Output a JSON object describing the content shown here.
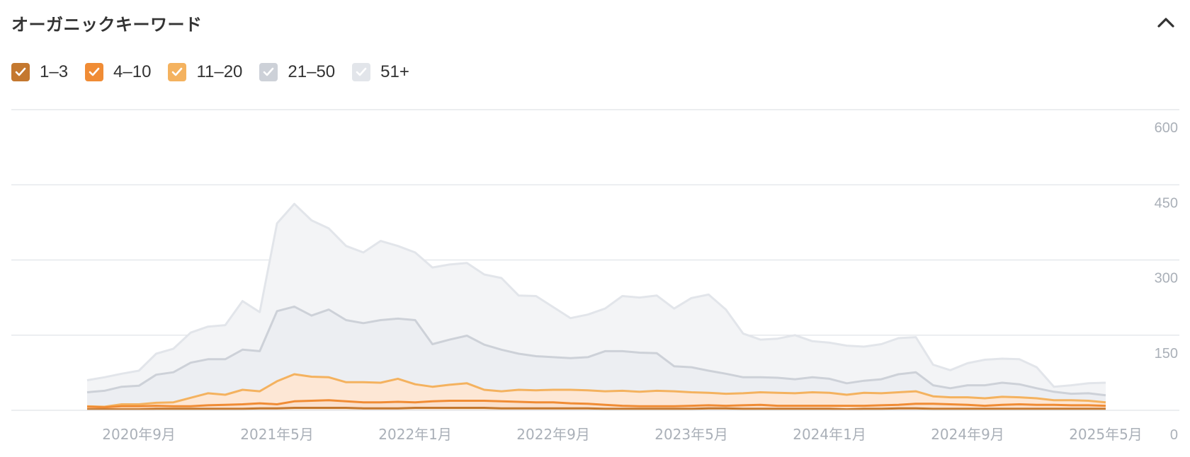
{
  "header": {
    "title": "オーガニックキーワード",
    "collapse_icon": "chevron-up-icon"
  },
  "legend": {
    "items": [
      {
        "label": "1–3",
        "color": "#c4782f",
        "checked": true
      },
      {
        "label": "4–10",
        "color": "#f08c35",
        "checked": true
      },
      {
        "label": "11–20",
        "color": "#f4b25f",
        "checked": true
      },
      {
        "label": "21–50",
        "color": "#cdd1d8",
        "checked": true
      },
      {
        "label": "51+",
        "color": "#e2e5ea",
        "checked": true
      }
    ]
  },
  "chart_data": {
    "type": "area",
    "stacked": true,
    "y_ticks": [
      "600",
      "450",
      "300",
      "150",
      "0"
    ],
    "ylim": [
      0,
      600
    ],
    "x_ticks": [
      "2020年9月",
      "2021年5月",
      "2022年1月",
      "2022年9月",
      "2023年5月",
      "2024年1月",
      "2024年9月",
      "2025年5月"
    ],
    "x_tick_index": [
      3,
      11,
      19,
      27,
      35,
      43,
      51,
      59
    ],
    "grid": true,
    "legend_position": "top-left",
    "series": [
      {
        "name": "1–3",
        "color": "#c4782f",
        "values": [
          2,
          2,
          2,
          2,
          3,
          3,
          3,
          3,
          3,
          3,
          4,
          4,
          5,
          5,
          5,
          5,
          4,
          4,
          4,
          5,
          5,
          5,
          5,
          5,
          4,
          4,
          4,
          4,
          4,
          4,
          3,
          3,
          3,
          3,
          3,
          3,
          4,
          4,
          3,
          3,
          3,
          3,
          3,
          3,
          2,
          3,
          3,
          4,
          4,
          3,
          3,
          3,
          3,
          3,
          3,
          3,
          3,
          3,
          3,
          3
        ]
      },
      {
        "name": "4–10",
        "color": "#f08c35",
        "values": [
          5,
          4,
          6,
          6,
          6,
          5,
          5,
          7,
          8,
          9,
          10,
          8,
          13,
          14,
          15,
          13,
          12,
          12,
          13,
          11,
          13,
          14,
          14,
          14,
          14,
          13,
          12,
          12,
          10,
          9,
          8,
          6,
          5,
          5,
          5,
          6,
          6,
          5,
          7,
          8,
          6,
          6,
          6,
          6,
          7,
          6,
          7,
          7,
          9,
          10,
          9,
          8,
          6,
          8,
          9,
          8,
          8,
          7,
          7,
          6
        ]
      },
      {
        "name": "11–20",
        "color": "#f4b25f",
        "values": [
          1,
          1,
          4,
          4,
          6,
          8,
          17,
          24,
          20,
          29,
          24,
          46,
          54,
          48,
          46,
          38,
          40,
          39,
          46,
          36,
          29,
          32,
          35,
          22,
          20,
          24,
          24,
          25,
          27,
          27,
          27,
          30,
          29,
          31,
          30,
          27,
          25,
          24,
          24,
          25,
          26,
          25,
          27,
          26,
          22,
          26,
          24,
          25,
          25,
          15,
          14,
          15,
          15,
          16,
          14,
          13,
          9,
          10,
          9,
          7
        ]
      },
      {
        "name": "21–50",
        "color": "#cdd1d8",
        "values": [
          28,
          32,
          35,
          37,
          56,
          60,
          70,
          68,
          71,
          80,
          80,
          140,
          135,
          122,
          135,
          124,
          118,
          125,
          120,
          128,
          85,
          90,
          95,
          90,
          83,
          72,
          68,
          65,
          63,
          66,
          80,
          79,
          78,
          75,
          50,
          50,
          44,
          40,
          32,
          30,
          30,
          28,
          30,
          28,
          23,
          24,
          28,
          36,
          38,
          22,
          18,
          24,
          26,
          28,
          26,
          20,
          17,
          13,
          15,
          14
        ]
      },
      {
        "name": "51+",
        "color": "#e2e5ea",
        "values": [
          24,
          27,
          26,
          30,
          42,
          47,
          60,
          65,
          68,
          97,
          78,
          175,
          205,
          190,
          162,
          148,
          141,
          158,
          145,
          135,
          153,
          150,
          145,
          140,
          143,
          116,
          120,
          100,
          80,
          85,
          85,
          110,
          110,
          115,
          115,
          138,
          152,
          128,
          87,
          75,
          78,
          88,
          72,
          72,
          75,
          68,
          70,
          72,
          70,
          41,
          36,
          44,
          51,
          48,
          50,
          42,
          10,
          17,
          20,
          25
        ]
      }
    ]
  }
}
